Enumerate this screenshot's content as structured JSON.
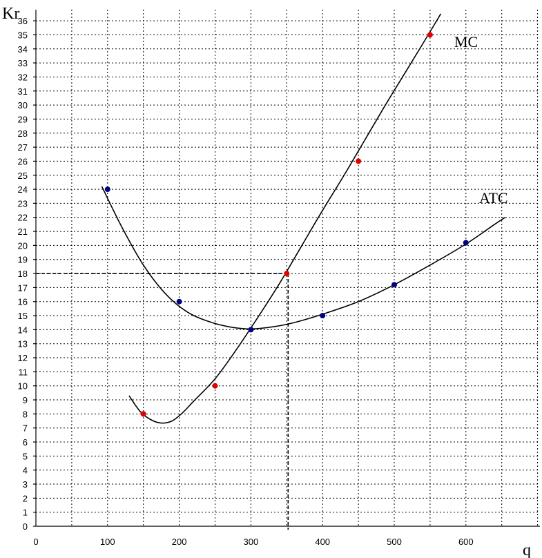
{
  "chart_data": {
    "type": "scatter",
    "title": "",
    "xlabel": "q",
    "ylabel": "Kr",
    "xlim": [
      0,
      700
    ],
    "ylim": [
      0,
      36
    ],
    "grid": true,
    "x_ticks": [
      0,
      100,
      200,
      300,
      400,
      500,
      600
    ],
    "y_ticks": [
      0,
      1,
      2,
      3,
      4,
      5,
      6,
      7,
      8,
      9,
      10,
      11,
      12,
      13,
      14,
      15,
      16,
      17,
      18,
      19,
      20,
      21,
      22,
      23,
      24,
      25,
      26,
      27,
      28,
      29,
      30,
      31,
      32,
      33,
      34,
      35,
      36
    ],
    "series": [
      {
        "name": "MC",
        "color": "#e00000",
        "points": [
          [
            150,
            8
          ],
          [
            250,
            10
          ],
          [
            350,
            18
          ],
          [
            450,
            26
          ],
          [
            550,
            35
          ]
        ],
        "trend": [
          [
            130,
            9.3
          ],
          [
            145,
            8.2
          ],
          [
            160,
            7.6
          ],
          [
            175,
            7.35
          ],
          [
            190,
            7.5
          ],
          [
            205,
            8.1
          ],
          [
            220,
            8.9
          ],
          [
            250,
            10.5
          ],
          [
            280,
            12.6
          ],
          [
            310,
            14.9
          ],
          [
            340,
            17.3
          ],
          [
            370,
            19.9
          ],
          [
            400,
            22.5
          ],
          [
            430,
            25.0
          ],
          [
            460,
            27.6
          ],
          [
            490,
            30.2
          ],
          [
            520,
            32.7
          ],
          [
            545,
            34.8
          ],
          [
            565,
            36.5
          ]
        ]
      },
      {
        "name": "ATC",
        "color": "#000080",
        "points": [
          [
            100,
            24
          ],
          [
            200,
            16
          ],
          [
            300,
            14
          ],
          [
            400,
            15
          ],
          [
            500,
            17.2
          ],
          [
            600,
            20.2
          ]
        ],
        "trend": [
          [
            92,
            24.2
          ],
          [
            120,
            21.3
          ],
          [
            150,
            18.6
          ],
          [
            180,
            16.6
          ],
          [
            210,
            15.3
          ],
          [
            240,
            14.6
          ],
          [
            270,
            14.2
          ],
          [
            300,
            14.05
          ],
          [
            330,
            14.2
          ],
          [
            360,
            14.5
          ],
          [
            400,
            15.1
          ],
          [
            450,
            16.0
          ],
          [
            500,
            17.2
          ],
          [
            550,
            18.6
          ],
          [
            600,
            20.1
          ],
          [
            640,
            21.5
          ],
          [
            655,
            22.0
          ]
        ]
      }
    ],
    "reference": {
      "x": 350,
      "y": 18
    }
  }
}
